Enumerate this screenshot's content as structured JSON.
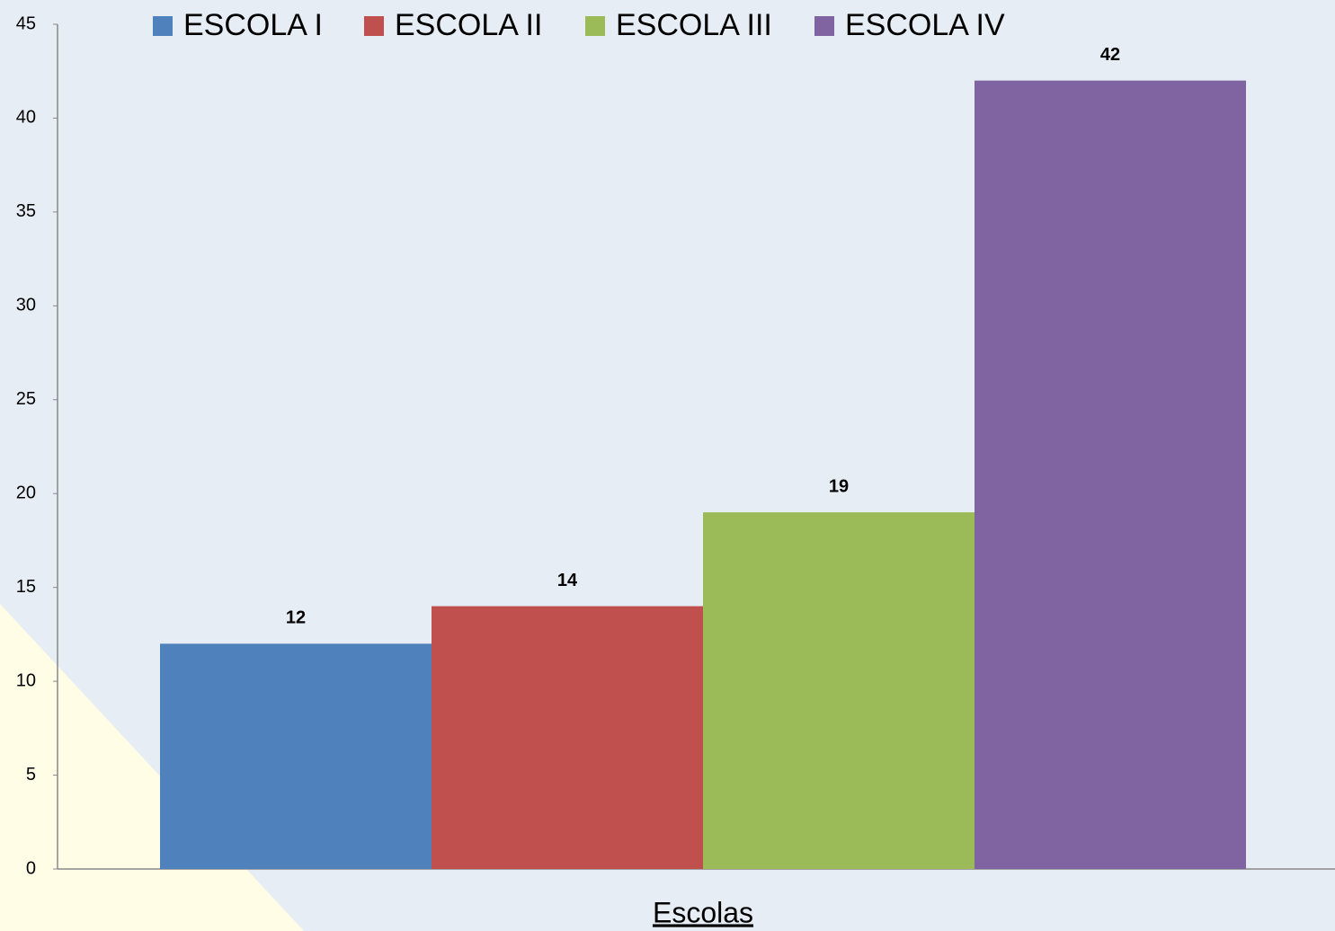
{
  "chart_data": {
    "type": "bar",
    "categories": [
      "Escolas"
    ],
    "series": [
      {
        "name": "ESCOLA I",
        "color": "#4f81bd",
        "values": [
          12
        ]
      },
      {
        "name": "ESCOLA II",
        "color": "#c0504d",
        "values": [
          14
        ]
      },
      {
        "name": "ESCOLA III",
        "color": "#9bbb59",
        "values": [
          19
        ]
      },
      {
        "name": "ESCOLA IV",
        "color": "#8064a2",
        "values": [
          42
        ]
      }
    ],
    "ylim": [
      0,
      45
    ],
    "yticks": [
      0,
      5,
      10,
      15,
      20,
      25,
      30,
      35,
      40,
      45
    ],
    "legend": "top",
    "grid": false
  }
}
